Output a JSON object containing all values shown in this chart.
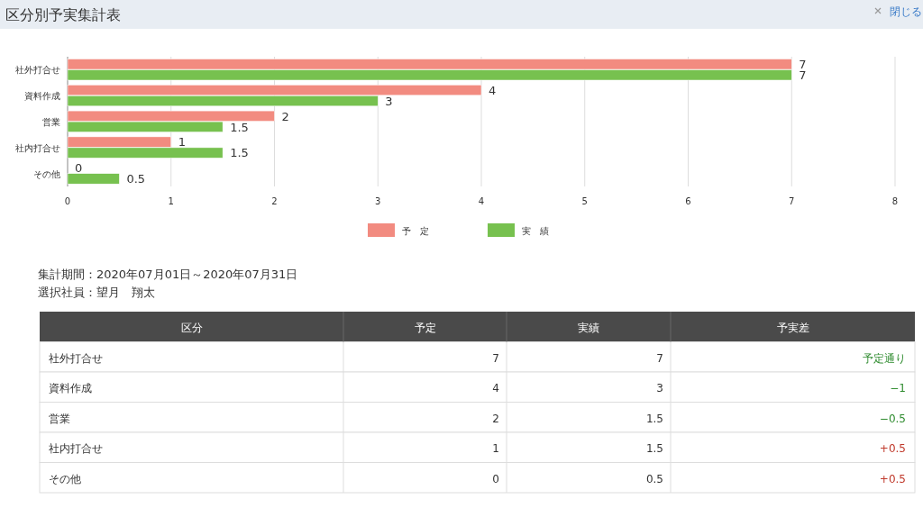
{
  "chart_data": {
    "type": "bar",
    "orientation": "horizontal",
    "title": "区分別予実集計表",
    "categories": [
      "社外打合せ",
      "資料作成",
      "営業",
      "社内打合せ",
      "その他"
    ],
    "series": [
      {
        "name": "予　定",
        "color": "#f28b80",
        "values": [
          7,
          4,
          2,
          1,
          0
        ]
      },
      {
        "name": "実　績",
        "color": "#77c14f",
        "values": [
          7,
          3,
          1.5,
          1.5,
          0.5
        ]
      }
    ],
    "xlim": [
      0,
      8
    ],
    "xticks": [
      0,
      1,
      2,
      3,
      4,
      5,
      6,
      7,
      8
    ],
    "grid": "x",
    "legend": "bottom",
    "data_labels": true,
    "annotations": [
      "集計期間：2020年07月01日～2020年07月31日",
      "選択社員：望月　翔太",
      "区分",
      "予定",
      "実績",
      "予実差",
      "7",
      "7",
      "予定通り",
      "4",
      "3",
      "−1",
      "2",
      "1.5",
      "−0.5",
      "1",
      "1.5",
      "+0.5",
      "0",
      "0.5",
      "+0.5",
      "閉じる"
    ]
  }
}
